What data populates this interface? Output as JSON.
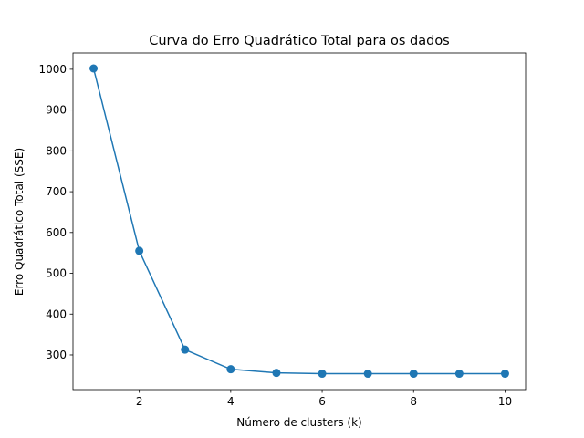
{
  "chart_data": {
    "type": "line",
    "title": "Curva do Erro Quadrático Total para os dados",
    "xlabel": "Número de clusters (k)",
    "ylabel": "Erro Quadrático Total (SSE)",
    "x": [
      1,
      2,
      3,
      4,
      5,
      6,
      7,
      8,
      9,
      10
    ],
    "series": [
      {
        "values": [
          1002,
          555,
          313,
          265,
          256,
          254,
          254,
          254,
          254,
          254
        ]
      }
    ],
    "xlim": [
      0.55,
      10.45
    ],
    "ylim": [
      215,
      1040
    ],
    "xticks": [
      2,
      4,
      6,
      8,
      10
    ],
    "yticks": [
      300,
      400,
      500,
      600,
      700,
      800,
      900,
      1000
    ],
    "grid": false,
    "marker": "circle",
    "color": "#1f77b4"
  }
}
